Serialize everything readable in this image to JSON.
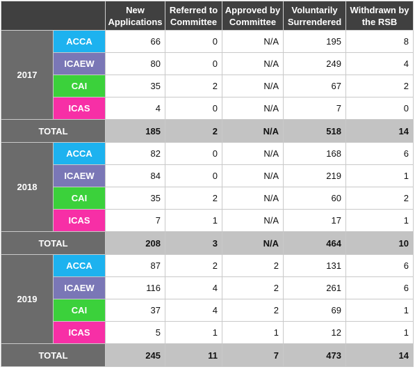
{
  "columns": [
    "New Applications",
    "Referred to Committee",
    "Approved by Committee",
    "Voluntarily Surrendered",
    "Withdrawn by the RSB"
  ],
  "colors": {
    "ACCA": "#1db2ef",
    "ICAEW": "#7a77b6",
    "CAI": "#3bd13b",
    "ICAS": "#f72fa6"
  },
  "total_label": "TOTAL",
  "years": [
    {
      "year": "2017",
      "rows": [
        {
          "org": "ACCA",
          "values": [
            "66",
            "0",
            "N/A",
            "195",
            "8"
          ]
        },
        {
          "org": "ICAEW",
          "values": [
            "80",
            "0",
            "N/A",
            "249",
            "4"
          ]
        },
        {
          "org": "CAI",
          "values": [
            "35",
            "2",
            "N/A",
            "67",
            "2"
          ]
        },
        {
          "org": "ICAS",
          "values": [
            "4",
            "0",
            "N/A",
            "7",
            "0"
          ]
        }
      ],
      "total": [
        "185",
        "2",
        "N/A",
        "518",
        "14"
      ]
    },
    {
      "year": "2018",
      "rows": [
        {
          "org": "ACCA",
          "values": [
            "82",
            "0",
            "N/A",
            "168",
            "6"
          ]
        },
        {
          "org": "ICAEW",
          "values": [
            "84",
            "0",
            "N/A",
            "219",
            "1"
          ]
        },
        {
          "org": "CAI",
          "values": [
            "35",
            "2",
            "N/A",
            "60",
            "2"
          ]
        },
        {
          "org": "ICAS",
          "values": [
            "7",
            "1",
            "N/A",
            "17",
            "1"
          ]
        }
      ],
      "total": [
        "208",
        "3",
        "N/A",
        "464",
        "10"
      ]
    },
    {
      "year": "2019",
      "rows": [
        {
          "org": "ACCA",
          "values": [
            "87",
            "2",
            "2",
            "131",
            "6"
          ]
        },
        {
          "org": "ICAEW",
          "values": [
            "116",
            "4",
            "2",
            "261",
            "6"
          ]
        },
        {
          "org": "CAI",
          "values": [
            "37",
            "4",
            "2",
            "69",
            "1"
          ]
        },
        {
          "org": "ICAS",
          "values": [
            "5",
            "1",
            "1",
            "12",
            "1"
          ]
        }
      ],
      "total": [
        "245",
        "11",
        "7",
        "473",
        "14"
      ]
    }
  ]
}
